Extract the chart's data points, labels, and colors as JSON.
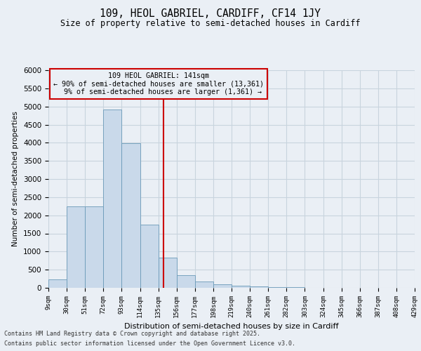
{
  "title": "109, HEOL GABRIEL, CARDIFF, CF14 1JY",
  "subtitle": "Size of property relative to semi-detached houses in Cardiff",
  "xlabel": "Distribution of semi-detached houses by size in Cardiff",
  "ylabel": "Number of semi-detached properties",
  "footnote1": "Contains HM Land Registry data © Crown copyright and database right 2025.",
  "footnote2": "Contains public sector information licensed under the Open Government Licence v3.0.",
  "property_value": 141,
  "property_label": "109 HEOL GABRIEL: 141sqm",
  "pct_smaller": "90%",
  "count_smaller": "13,361",
  "pct_larger": "9%",
  "count_larger": "1,361",
  "bin_edges": [
    9,
    30,
    51,
    72,
    93,
    114,
    135,
    156,
    177,
    198,
    219,
    240,
    261,
    282,
    303,
    324,
    345,
    366,
    387,
    408,
    429
  ],
  "bin_labels": [
    "9sqm",
    "30sqm",
    "51sqm",
    "72sqm",
    "93sqm",
    "114sqm",
    "135sqm",
    "156sqm",
    "177sqm",
    "198sqm",
    "219sqm",
    "240sqm",
    "261sqm",
    "282sqm",
    "303sqm",
    "324sqm",
    "345sqm",
    "366sqm",
    "387sqm",
    "408sqm",
    "429sqm"
  ],
  "counts": [
    230,
    2250,
    2250,
    4920,
    3980,
    1750,
    830,
    340,
    175,
    105,
    55,
    30,
    15,
    10,
    5,
    3,
    2,
    1,
    0,
    0
  ],
  "bar_facecolor": "#c9d9ea",
  "bar_edgecolor": "#6a9ab8",
  "vline_color": "#cc0000",
  "annotation_box_edgecolor": "#cc0000",
  "grid_color": "#c8d4de",
  "background_color": "#eaeff5",
  "ylim": [
    0,
    6000
  ],
  "yticks": [
    0,
    500,
    1000,
    1500,
    2000,
    2500,
    3000,
    3500,
    4000,
    4500,
    5000,
    5500,
    6000
  ]
}
